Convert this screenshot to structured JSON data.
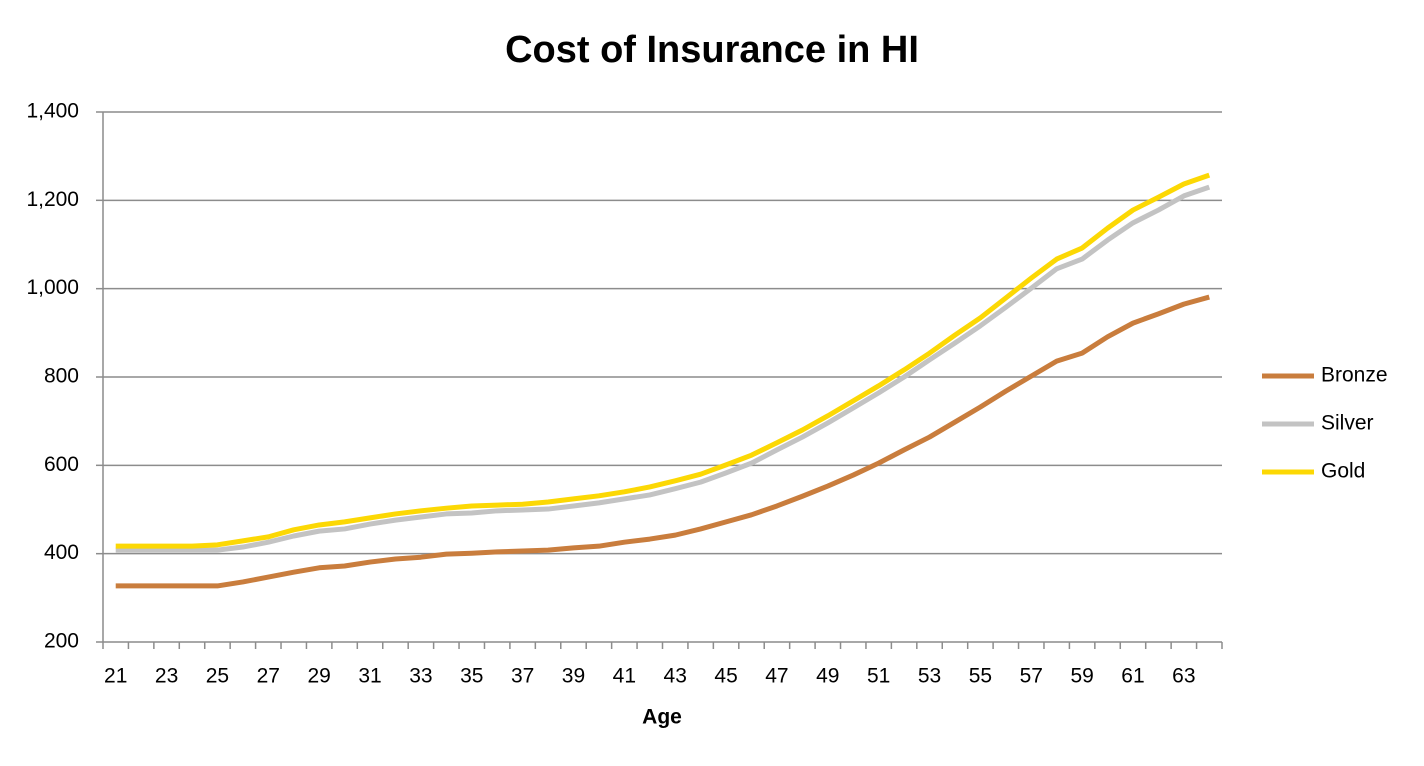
{
  "chart_data": {
    "type": "line",
    "title": "Cost of Insurance in HI",
    "x_label": "Age",
    "categories": [
      "21",
      null,
      "23",
      null,
      "25",
      null,
      "27",
      null,
      "29",
      null,
      "31",
      null,
      "33",
      null,
      "35",
      null,
      "37",
      null,
      "39",
      null,
      "41",
      null,
      "43",
      null,
      "45",
      null,
      "47",
      null,
      "49",
      null,
      "51",
      null,
      "53",
      null,
      "55",
      null,
      "57",
      null,
      "59",
      null,
      "61",
      null,
      "63",
      null
    ],
    "series": [
      {
        "name": "Bronze",
        "color": "#c97d3d",
        "values": [
          327,
          327,
          327,
          327,
          327,
          336,
          347,
          358,
          368,
          372,
          381,
          388,
          392,
          399,
          401,
          404,
          406,
          408,
          413,
          417,
          426,
          433,
          442,
          456,
          472,
          488,
          508,
          530,
          553,
          578,
          605,
          635,
          664,
          698,
          732,
          768,
          802,
          836,
          854,
          891,
          922,
          943,
          965,
          981
        ]
      },
      {
        "name": "Silver",
        "color": "#c3c3c3",
        "values": [
          408,
          408,
          408,
          408,
          408,
          415,
          426,
          440,
          451,
          456,
          467,
          476,
          483,
          490,
          492,
          497,
          499,
          501,
          508,
          515,
          524,
          533,
          547,
          562,
          583,
          605,
          635,
          664,
          696,
          730,
          764,
          800,
          839,
          877,
          916,
          958,
          1001,
          1045,
          1067,
          1110,
          1149,
          1178,
          1210,
          1230
        ]
      },
      {
        "name": "Gold",
        "color": "#fcd804",
        "values": [
          417,
          417,
          417,
          417,
          420,
          429,
          438,
          454,
          465,
          472,
          481,
          490,
          497,
          503,
          508,
          510,
          512,
          517,
          524,
          531,
          540,
          551,
          565,
          580,
          601,
          623,
          651,
          680,
          712,
          746,
          780,
          816,
          854,
          895,
          934,
          979,
          1024,
          1067,
          1092,
          1137,
          1178,
          1207,
          1237,
          1257
        ]
      }
    ],
    "ylim": [
      200,
      1400
    ],
    "yticks": [
      200,
      400,
      600,
      800,
      {
        "value": 1000,
        "label": "1,000"
      },
      {
        "value": 1200,
        "label": "1,200"
      },
      {
        "value": 1400,
        "label": "1,400"
      }
    ],
    "grid": true,
    "legend": "right"
  }
}
